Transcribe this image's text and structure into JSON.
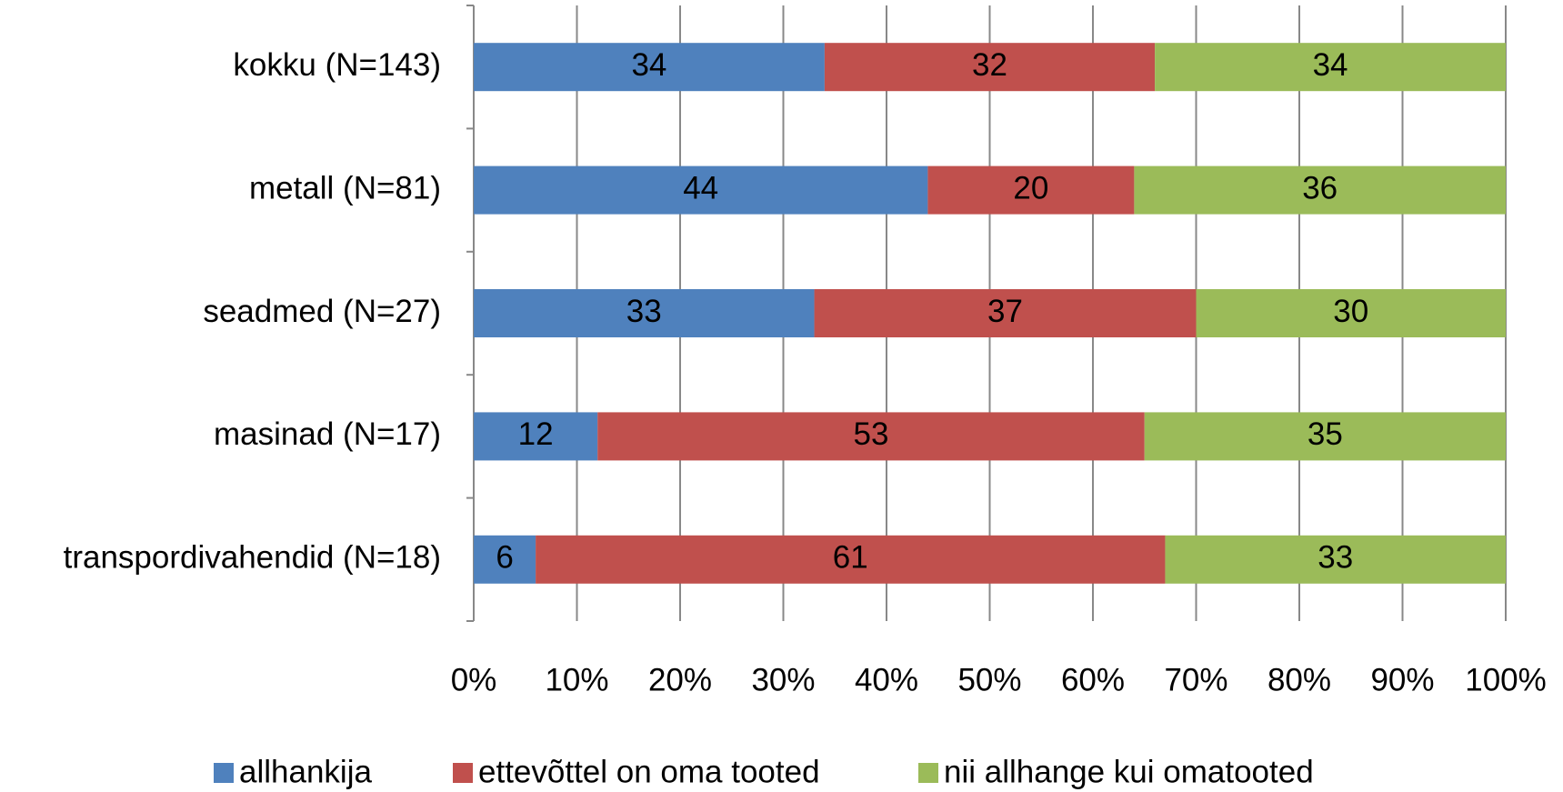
{
  "chart_data": {
    "type": "stacked-bar-horizontal",
    "categories": [
      "kokku (N=143)",
      "metall (N=81)",
      "seadmed (N=27)",
      "masinad (N=17)",
      "transpordivahendid (N=18)"
    ],
    "series": [
      {
        "name": "allhankija",
        "color": "#4f81bd",
        "values": [
          34,
          44,
          33,
          12,
          6
        ]
      },
      {
        "name": "ettevõttel on oma tooted",
        "color": "#c0504d",
        "values": [
          32,
          20,
          37,
          53,
          61
        ]
      },
      {
        "name": "nii allhange kui omatooted",
        "color": "#9bbb59",
        "values": [
          34,
          36,
          30,
          35,
          33
        ]
      }
    ],
    "xlim": [
      0,
      100
    ],
    "xticks": [
      {
        "value": 0,
        "label": "0%"
      },
      {
        "value": 10,
        "label": "10%"
      },
      {
        "value": 20,
        "label": "20%"
      },
      {
        "value": 30,
        "label": "30%"
      },
      {
        "value": 40,
        "label": "40%"
      },
      {
        "value": 50,
        "label": "50%"
      },
      {
        "value": 60,
        "label": "60%"
      },
      {
        "value": 70,
        "label": "70%"
      },
      {
        "value": 80,
        "label": "80%"
      },
      {
        "value": 90,
        "label": "90%"
      },
      {
        "value": 100,
        "label": "100%"
      }
    ],
    "grid": true,
    "legend": "bottom"
  }
}
